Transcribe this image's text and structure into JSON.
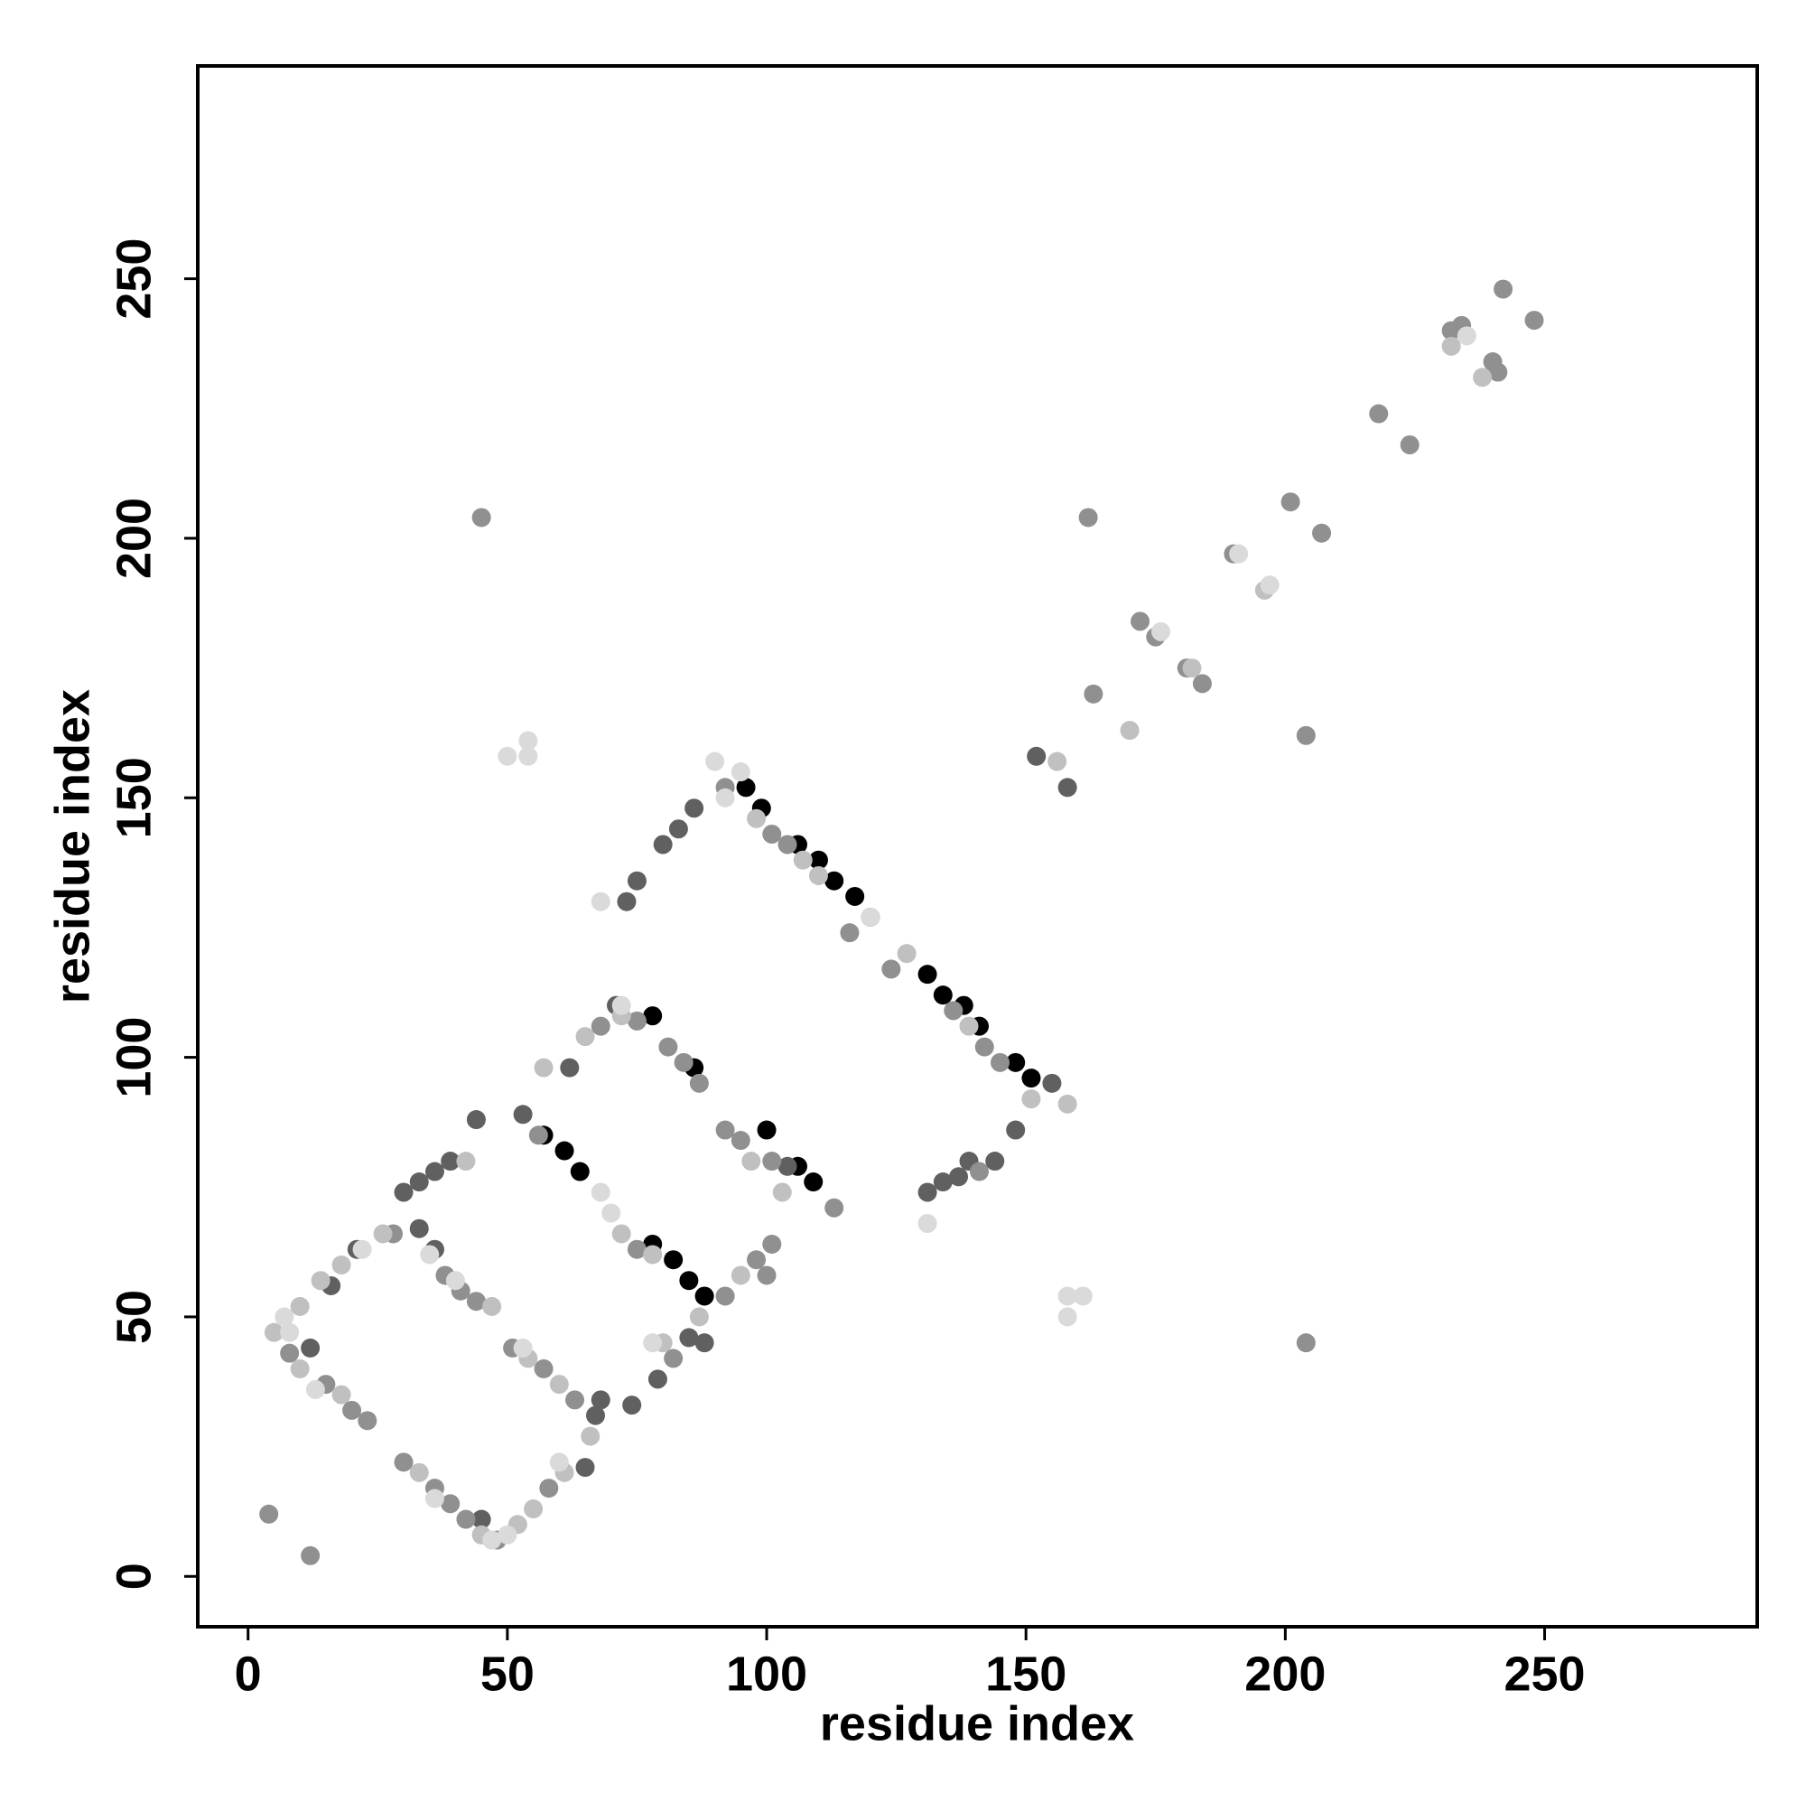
{
  "chart_data": {
    "type": "scatter",
    "x_label": "residue index",
    "y_label": "residue index",
    "xlim": [
      -9.7,
      291
    ],
    "ylim": [
      -9.7,
      291
    ],
    "xticks": [
      0,
      50,
      100,
      150,
      200,
      250
    ],
    "yticks": [
      0,
      50,
      100,
      150,
      200,
      250
    ],
    "series": [
      {
        "color": "#000000",
        "x": [
          57,
          61,
          64,
          78,
          82,
          85,
          88,
          86,
          78,
          96,
          99,
          106,
          110,
          113,
          117,
          131,
          134,
          138,
          141,
          148,
          151,
          100,
          106,
          109
        ],
        "y": [
          85,
          82,
          78,
          64,
          61,
          57,
          54,
          98,
          108,
          152,
          148,
          141,
          138,
          134,
          131,
          116,
          112,
          110,
          106,
          99,
          96,
          86,
          79,
          76
        ]
      },
      {
        "color": "#606060",
        "x": [
          12,
          21,
          30,
          33,
          36,
          39,
          44,
          53,
          33,
          36,
          45,
          65,
          68,
          67,
          74,
          79,
          85,
          88,
          73,
          75,
          80,
          83,
          86,
          131,
          134,
          137,
          139,
          144,
          148,
          152,
          158,
          62,
          71,
          104,
          120,
          155,
          16
        ],
        "y": [
          44,
          63,
          74,
          76,
          78,
          80,
          88,
          89,
          67,
          63,
          11,
          21,
          34,
          31,
          33,
          38,
          46,
          45,
          130,
          134,
          141,
          144,
          148,
          74,
          76,
          77,
          80,
          80,
          86,
          158,
          152,
          98,
          110,
          79,
          127,
          95,
          56
        ]
      },
      {
        "color": "#909090",
        "x": [
          4,
          12,
          45,
          201,
          207,
          218,
          224,
          172,
          184,
          204,
          204,
          162,
          8,
          15,
          20,
          23,
          28,
          38,
          41,
          44,
          30,
          36,
          39,
          42,
          48,
          51,
          57,
          63,
          58,
          75,
          82,
          92,
          95,
          101,
          113,
          92,
          98,
          101,
          92,
          101,
          104,
          116,
          124,
          136,
          142,
          145,
          56,
          68,
          75,
          81,
          84,
          87,
          232,
          234,
          240,
          241,
          242,
          248,
          163,
          175,
          181,
          190,
          100,
          141
        ],
        "y": [
          12,
          4,
          204,
          207,
          201,
          224,
          218,
          184,
          172,
          162,
          45,
          204,
          43,
          37,
          32,
          30,
          66,
          58,
          55,
          53,
          22,
          17,
          14,
          11,
          7,
          44,
          40,
          34,
          17,
          63,
          42,
          86,
          84,
          80,
          71,
          54,
          61,
          64,
          152,
          143,
          141,
          124,
          117,
          109,
          102,
          99,
          85,
          106,
          107,
          102,
          99,
          95,
          240,
          241,
          234,
          232,
          248,
          242,
          170,
          181,
          175,
          197,
          58,
          78
        ]
      },
      {
        "color": "#c0c0c0",
        "x": [
          5,
          10,
          14,
          18,
          10,
          18,
          33,
          45,
          52,
          55,
          61,
          54,
          60,
          66,
          72,
          78,
          80,
          87,
          95,
          98,
          107,
          110,
          127,
          139,
          151,
          158,
          65,
          72,
          57,
          97,
          103,
          170,
          182,
          196,
          232,
          238,
          156,
          47,
          42,
          26
        ],
        "y": [
          47,
          52,
          57,
          60,
          40,
          35,
          20,
          8,
          10,
          13,
          20,
          42,
          37,
          27,
          66,
          62,
          45,
          50,
          58,
          146,
          138,
          135,
          120,
          106,
          92,
          91,
          104,
          108,
          98,
          80,
          74,
          163,
          175,
          190,
          237,
          231,
          157,
          52,
          80,
          66
        ]
      },
      {
        "color": "#dadada",
        "x": [
          7,
          22,
          13,
          35,
          40,
          47,
          50,
          60,
          68,
          72,
          68,
          90,
          95,
          92,
          158,
          161,
          158,
          50,
          54,
          54,
          131,
          191,
          197,
          176,
          120,
          70,
          78,
          36,
          8,
          235,
          53
        ],
        "y": [
          50,
          63,
          36,
          62,
          57,
          7,
          8,
          22,
          74,
          110,
          130,
          157,
          155,
          150,
          54,
          54,
          50,
          158,
          161,
          158,
          68,
          197,
          191,
          182,
          127,
          70,
          45,
          15,
          47,
          239,
          44
        ]
      }
    ]
  }
}
